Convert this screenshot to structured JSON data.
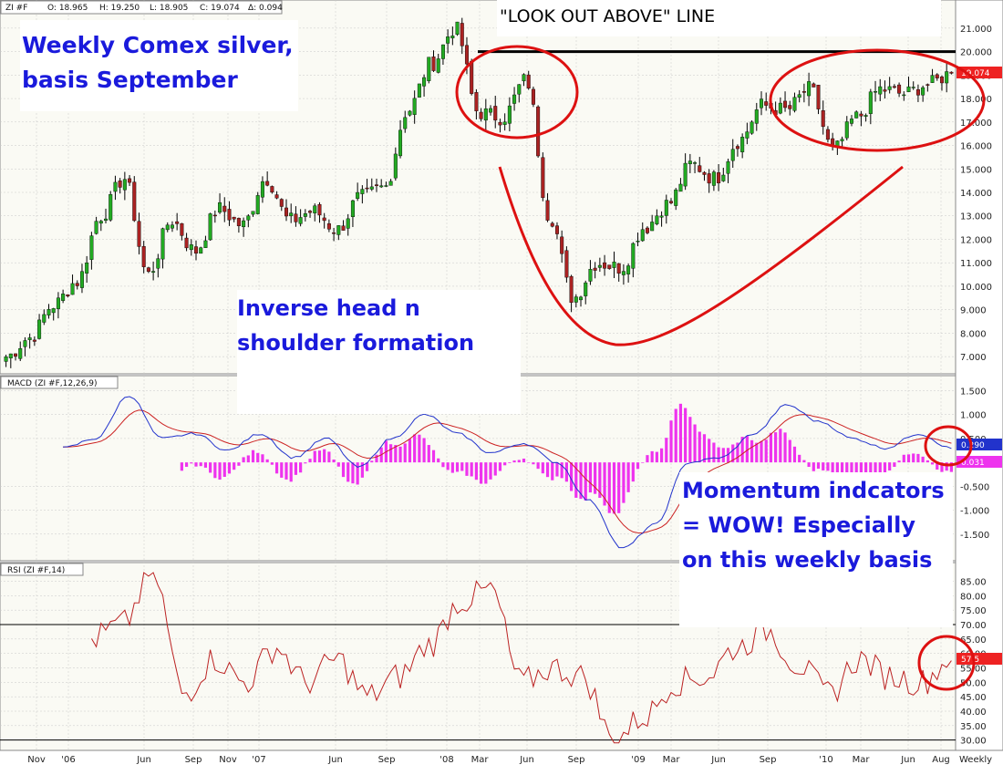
{
  "colors": {
    "bg": "#ffffff",
    "panel": "#fafaf4",
    "grid": "#c8c8c8",
    "up": "#22aa22",
    "down": "#aa2222",
    "macd_line": "#2233cc",
    "signal_line": "#cc2222",
    "histogram": "#ee33ee",
    "rsi_line": "#bb2222",
    "annotation_blue": "#1a1adc",
    "annotation_red": "#dd1111",
    "last_price_tag": "#ee2222",
    "macd_tag": "#2233cc",
    "hist_tag": "#ee33ee",
    "rsi_tag": "#ee2222"
  },
  "header": {
    "symbol": "ZI #F",
    "open": "O: 18.965",
    "high": "H: 19.250",
    "low": "L: 18.905",
    "close": "C: 19.074",
    "change": "Δ: 0.094"
  },
  "annotations": {
    "title_line1": "Weekly Comex silver,",
    "title_line2": "basis September",
    "look_out": "\"LOOK OUT ABOVE\" LINE",
    "ihs_line1": "Inverse head n",
    "ihs_line2": "shoulder formation",
    "momentum_line1": "Momentum indcators",
    "momentum_line2": "= WOW!  Especially",
    "momentum_line3": "on this weekly basis"
  },
  "macd_title": "MACD (ZI #F,12,26,9)",
  "rsi_title": "RSI (ZI #F,14)",
  "price_tag": "19.074",
  "macd_tag": "0.290",
  "hist_tag": "0.031",
  "rsi_tag": "57.5",
  "period_label": "Weekly",
  "chart_data": [
    {
      "type": "candlestick",
      "title": "Weekly Comex silver, basis September",
      "ylim": [
        6.5,
        21.5
      ],
      "yticks": [
        "7.000",
        "8.000",
        "9.000",
        "10.000",
        "11.000",
        "12.000",
        "13.000",
        "14.000",
        "15.000",
        "16.000",
        "17.000",
        "18.000",
        "19.000",
        "20.000",
        "21.000"
      ],
      "x": [
        "Nov",
        "'06",
        "Jun",
        "Sep",
        "Nov",
        "'07",
        "Jun",
        "Sep",
        "'08",
        "Mar",
        "Jun",
        "Sep",
        "'09",
        "Mar",
        "Jun",
        "Sep",
        "'10",
        "Mar",
        "Jun",
        "Aug"
      ],
      "anchor_closes": [
        7.0,
        7.8,
        9.2,
        10.2,
        13.0,
        14.6,
        10.5,
        12.8,
        11.5,
        13.3,
        12.6,
        14.6,
        12.8,
        13.2,
        12.4,
        13.8,
        14.2,
        17.5,
        19.5,
        21.0,
        17.4,
        17.2,
        18.8,
        13.0,
        9.5,
        11.0,
        10.8,
        12.5,
        13.5,
        15.2,
        14.6,
        16.2,
        17.7,
        17.5,
        18.4,
        15.8,
        17.2,
        18.4,
        18.2,
        18.6,
        19.07
      ],
      "resistance": 20.0,
      "last": 19.074
    },
    {
      "type": "line",
      "title": "MACD (ZI #F,12,26,9)",
      "ylim": [
        -2.0,
        1.7
      ],
      "yticks": [
        "1.500",
        "1.000",
        "0.500",
        "-0.500",
        "-1.000",
        "-1.500"
      ],
      "macd_anchors": [
        0.3,
        0.5,
        1.4,
        0.5,
        0.6,
        0.25,
        0.6,
        0.1,
        0.5,
        -0.1,
        0.5,
        1.0,
        0.6,
        0.2,
        0.4,
        0.0,
        -0.8,
        -1.8,
        -1.3,
        0.0,
        0.1,
        0.6,
        1.2,
        0.85,
        0.5,
        0.3,
        0.6,
        0.3
      ],
      "macd_last": 0.29,
      "hist_last": 0.031
    },
    {
      "type": "line",
      "title": "RSI (ZI #F,14)",
      "ylim": [
        28,
        88
      ],
      "yticks": [
        "85.00",
        "80.00",
        "75.00",
        "70.00",
        "65.00",
        "60.00",
        "55.00",
        "50.00",
        "45.00",
        "40.00",
        "35.00",
        "30.00"
      ],
      "reference_lines": [
        70,
        30
      ],
      "rsi_anchors": [
        65,
        70,
        88,
        46,
        58,
        50,
        62,
        50,
        58,
        45,
        52,
        63,
        78,
        82,
        50,
        55,
        52,
        30,
        38,
        50,
        52,
        62,
        68,
        56,
        46,
        58,
        52,
        50,
        58
      ],
      "last": 57.5
    }
  ]
}
